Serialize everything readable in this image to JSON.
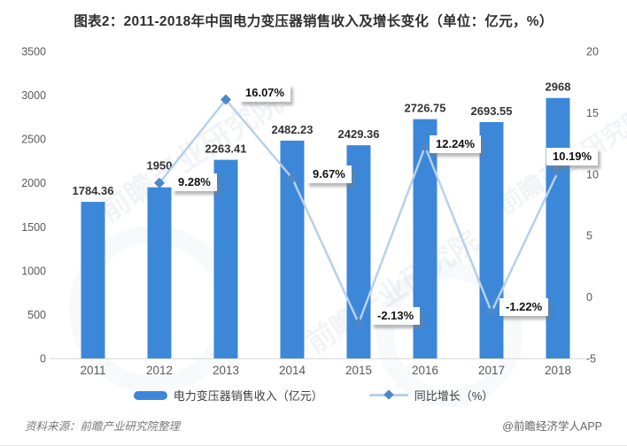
{
  "title": "图表2：2011-2018年中国电力变压器销售收入及增长变化（单位：亿元，%）",
  "chart_data": {
    "type": "combo",
    "categories": [
      "2011",
      "2012",
      "2013",
      "2014",
      "2015",
      "2016",
      "2017",
      "2018"
    ],
    "series": [
      {
        "name": "电力变压器销售收入（亿元）",
        "type": "bar",
        "axis": "left",
        "values": [
          1784.36,
          1950,
          2263.41,
          2482.23,
          2429.36,
          2726.75,
          2693.55,
          2968
        ]
      },
      {
        "name": "同比增长（%）",
        "type": "line",
        "axis": "right",
        "values": [
          null,
          9.28,
          16.07,
          9.67,
          -2.13,
          12.24,
          -1.22,
          10.19
        ]
      }
    ],
    "left_axis": {
      "min": 0,
      "max": 3500,
      "step": 500,
      "ticks": [
        3500,
        3000,
        2500,
        2000,
        1500,
        1000,
        500,
        0
      ]
    },
    "right_axis": {
      "min": -5,
      "max": 20,
      "step": 5,
      "ticks": [
        20,
        15,
        10,
        5,
        0,
        -5
      ]
    },
    "legend_position": "bottom",
    "grid": false
  },
  "legend": {
    "bar_label": "电力变压器销售收入（亿元）",
    "line_label": "同比增长（%）"
  },
  "footer": {
    "source": "资料来源：前瞻产业研究院整理",
    "credit": "@前瞻经济学人APP"
  },
  "watermark_text": "前瞻产业研究院",
  "colors": {
    "bar": "#3D87D8",
    "line": "#B7D0EB",
    "marker": "#4E86C8",
    "axis_text": "#595959",
    "label_text": "#333333",
    "axis_line": "#D9D9D9"
  }
}
